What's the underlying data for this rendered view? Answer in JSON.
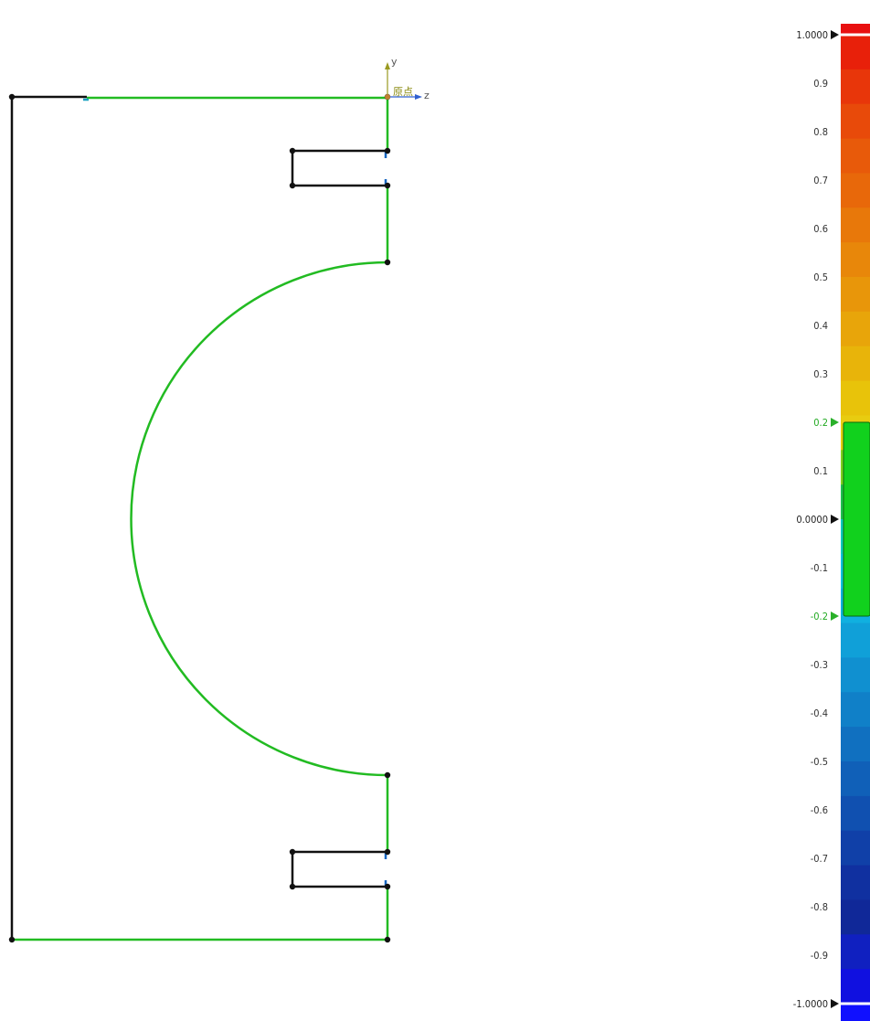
{
  "viewport": {
    "axis": {
      "y_label": "y",
      "z_label": "z",
      "origin_label": "原点"
    },
    "colors": {
      "contour": "#22bb22",
      "edge": "#111111",
      "node": "#111111",
      "marker": "#1565c0"
    }
  },
  "legend": {
    "max_label": "1.0000",
    "zero_label": "0.0000",
    "min_label": "-1.0000",
    "tick_labels": [
      "0.9",
      "0.8",
      "0.7",
      "0.6",
      "0.5",
      "0.4",
      "0.3",
      "0.2",
      "0.1",
      "-0.1",
      "-0.2",
      "-0.3",
      "-0.4",
      "-0.5",
      "-0.6",
      "-0.7",
      "-0.8",
      "-0.9"
    ],
    "highlight_range": {
      "low": -0.2,
      "high": 0.2,
      "color": "#11d11d",
      "label_color": "#22aa22"
    },
    "band_colors": [
      "#e8200a",
      "#e8360a",
      "#e84a0a",
      "#e85a0a",
      "#e8680a",
      "#e8780a",
      "#e8870a",
      "#e8960a",
      "#e8a50a",
      "#e8b40a",
      "#e8c30a",
      "#e8cc10",
      "#80d020",
      "#20c050",
      "#10c8c0",
      "#10c0e0",
      "#10b0e0",
      "#10a0d8",
      "#1090d0",
      "#1080c8",
      "#1070c0",
      "#1060b8",
      "#1050b0",
      "#1040a8",
      "#1030a0",
      "#102898",
      "#1020c0",
      "#1010e0"
    ]
  }
}
